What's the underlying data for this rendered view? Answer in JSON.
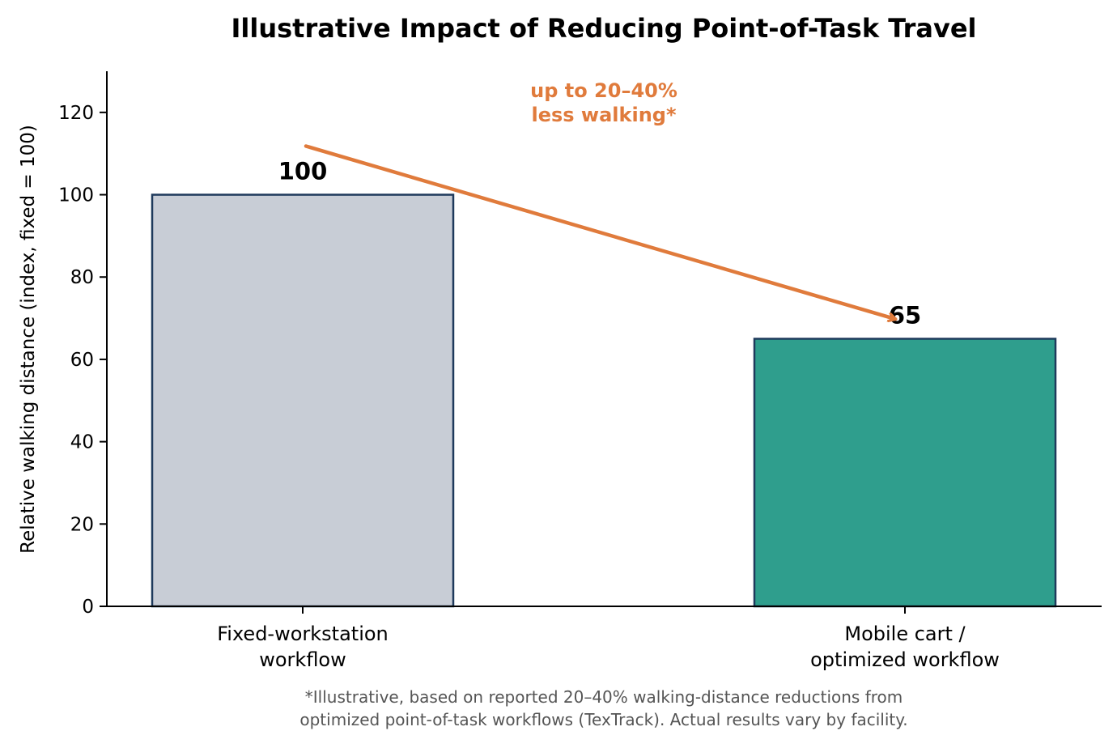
{
  "chart_data": {
    "type": "bar",
    "title": "Illustrative Impact of Reducing Point-of-Task Travel",
    "xlabel": "",
    "ylabel": "Relative walking distance (index, fixed = 100)",
    "ylim": [
      0,
      130
    ],
    "yticks": [
      0,
      20,
      40,
      60,
      80,
      100,
      120
    ],
    "grid": false,
    "categories": [
      [
        "Fixed-workstation",
        "workflow"
      ],
      [
        "Mobile cart /",
        "optimized workflow"
      ]
    ],
    "values": [
      100,
      65
    ],
    "value_labels": [
      "100",
      "65"
    ],
    "bar_colors": [
      "#c8cdd6",
      "#2f9e8d"
    ],
    "bar_edge_color": "#1f3a5c",
    "annotation": {
      "lines": [
        "up to 20–40%",
        "less walking*"
      ],
      "color": "#e07b3c",
      "arrow_from_value": 112,
      "arrow_to_value": 70
    },
    "footnote": [
      "*Illustrative, based on reported 20–40% walking-distance reductions from",
      "optimized point-of-task workflows (TexTrack). Actual results vary by facility."
    ]
  }
}
